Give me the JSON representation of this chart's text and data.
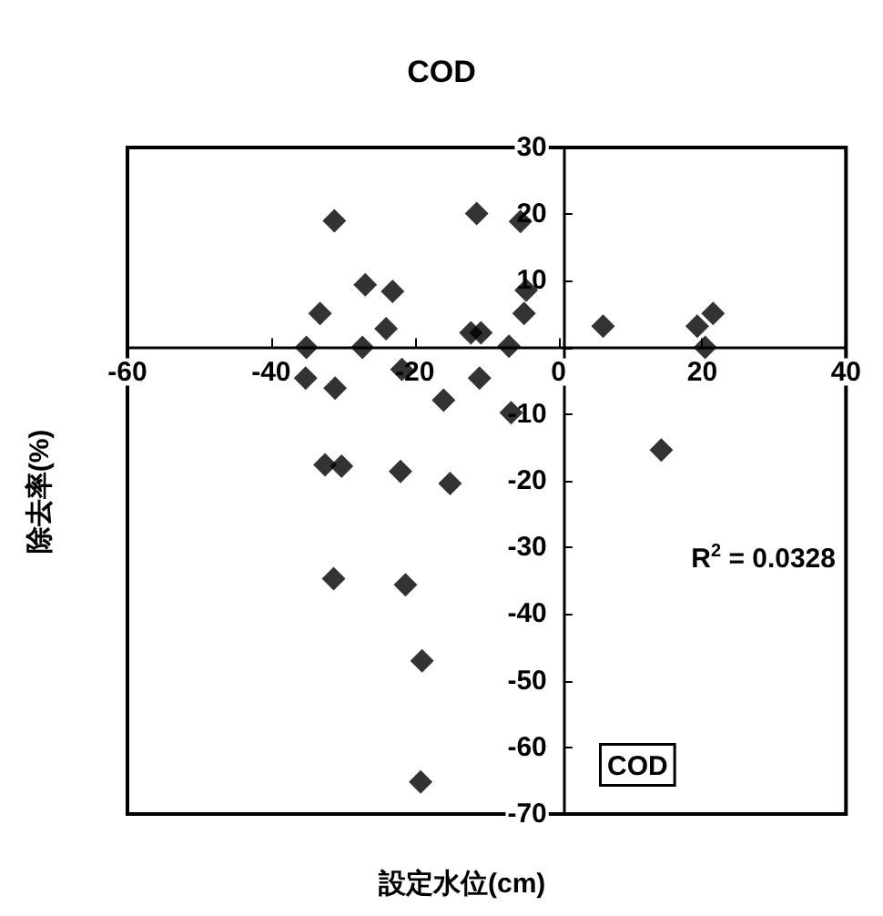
{
  "chart_data": {
    "type": "scatter",
    "title": "COD",
    "xlabel": "設定水位(cm)",
    "ylabel": "除去率(%)",
    "series": [
      {
        "color": "#000000",
        "x": [
          -31.2,
          -26.9,
          -23.1,
          -33.2,
          -24.0,
          -35.1,
          -27.3,
          -35.2,
          -31.1,
          -21.8,
          -16.0,
          -11.4,
          -5.3,
          -4.5,
          -4.8,
          -12.2,
          -10.8,
          -6.9,
          -11.0,
          -6.6,
          6.2,
          19.3,
          21.5,
          20.4,
          14.3,
          -32.5,
          -30.2,
          -22.0,
          -15.1,
          -31.3,
          -21.3,
          -19.0,
          -19.2
        ],
        "values": [
          19.0,
          9.4,
          8.4,
          5.1,
          2.8,
          0,
          0,
          -4.6,
          -6.1,
          -3.3,
          -7.9,
          20.1,
          18.9,
          8.6,
          5.1,
          2.2,
          2.2,
          0.2,
          -4.6,
          -9.8,
          3.2,
          3.2,
          5.1,
          0,
          -15.4,
          -17.6,
          -17.8,
          -18.6,
          -20.4,
          -34.7,
          -35.6,
          -47.0,
          -65.2
        ]
      }
    ],
    "xlim": [
      -60,
      40
    ],
    "xticks": [
      -60,
      -40,
      -20,
      0,
      20,
      40
    ],
    "ylim": [
      -70,
      30
    ],
    "yticks": [
      -70,
      -60,
      -50,
      -40,
      -30,
      -20,
      -10,
      {
        "value": 0,
        "label": null
      },
      10,
      20,
      30
    ],
    "marker": "diamond",
    "annotations": [
      "R$^{2}$ = 0.0328",
      "COD"
    ]
  }
}
